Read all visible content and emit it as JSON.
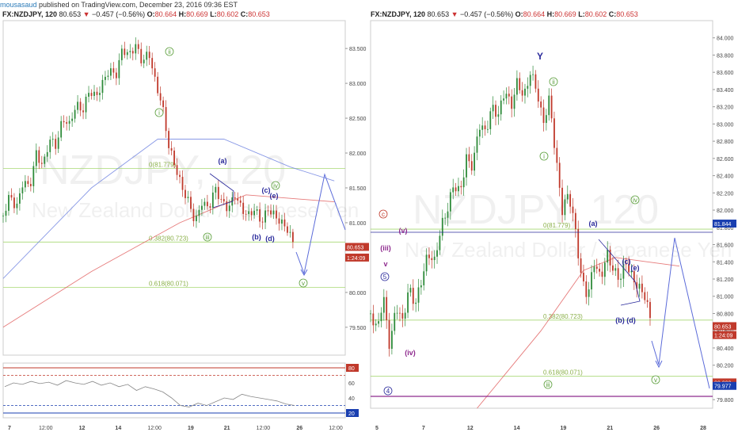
{
  "publisher": {
    "user": "mousasaud",
    "text": " published on TradingView.com, December 23, 2016 09:36 EST"
  },
  "left_header": {
    "symbol": "FX:NZDJPY, 120",
    "last": "80.653",
    "change": "−0.457 (−0.56%)",
    "o_label": "O:",
    "o": "80.664",
    "h_label": "H:",
    "h": "80.669",
    "l_label": "L:",
    "l": "80.602",
    "c_label": "C:",
    "c": "80.653"
  },
  "right_header": {
    "symbol": "FX:NZDJPY, 120",
    "last": "80.653",
    "change": "−0.457 (−0.56%)",
    "o_label": "O:",
    "o": "80.664",
    "h_label": "H:",
    "h": "80.669",
    "l_label": "L:",
    "l": "80.602",
    "c_label": "C:",
    "c": "80.653"
  },
  "colors": {
    "candle_up": "#2e8b3a",
    "candle_down": "#c0392b",
    "wave_blue": "#2b2b9c",
    "wave_green": "#5a9e3a",
    "wave_purple": "#8e2a8e",
    "wave_red": "#c0392b",
    "ma_blue": "#6b7fe0",
    "ma_red": "#e05a5a",
    "fib_green": "#a7d873",
    "price_tag": "#c0392b"
  },
  "chart_data": [
    {
      "type": "candlestick",
      "title": "FX:NZDJPY, 120",
      "watermark": "NZDJPY, 120",
      "watermark_sub": "New Zealand Dollar / Japanese Yen",
      "ylim": [
        79.1,
        83.9
      ],
      "yticks": [
        "83.500",
        "83.000",
        "82.500",
        "82.000",
        "81.500",
        "81.000",
        "80.500",
        "80.000",
        "79.500"
      ],
      "xticks": [
        "7",
        "12:00",
        "12",
        "14",
        "12:00",
        "19",
        "21",
        "12:00",
        "26",
        "12:00"
      ],
      "close_path": [
        [
          0,
          81.1
        ],
        [
          6,
          81.4
        ],
        [
          12,
          81.2
        ],
        [
          18,
          81.6
        ],
        [
          24,
          81.5
        ],
        [
          30,
          82.0
        ],
        [
          36,
          81.8
        ],
        [
          42,
          82.2
        ],
        [
          48,
          82.1
        ],
        [
          54,
          82.5
        ],
        [
          60,
          82.4
        ],
        [
          66,
          82.7
        ],
        [
          72,
          82.6
        ],
        [
          78,
          82.9
        ],
        [
          84,
          82.8
        ],
        [
          90,
          83.0
        ],
        [
          96,
          83.2
        ],
        [
          102,
          83.1
        ],
        [
          108,
          83.5
        ],
        [
          114,
          83.4
        ],
        [
          120,
          83.55
        ],
        [
          126,
          83.3
        ],
        [
          132,
          83.45
        ],
        [
          138,
          83.0
        ],
        [
          144,
          82.7
        ],
        [
          150,
          82.1
        ],
        [
          156,
          81.8
        ],
        [
          162,
          81.5
        ],
        [
          168,
          81.3
        ],
        [
          174,
          81.0
        ],
        [
          180,
          81.3
        ],
        [
          186,
          81.2
        ],
        [
          192,
          81.5
        ],
        [
          198,
          81.3
        ],
        [
          204,
          81.2
        ],
        [
          210,
          81.4
        ],
        [
          216,
          81.2
        ],
        [
          222,
          81.1
        ],
        [
          228,
          81.2
        ],
        [
          234,
          81.0
        ],
        [
          240,
          81.2
        ],
        [
          246,
          81.1
        ],
        [
          252,
          81.0
        ],
        [
          258,
          80.9
        ],
        [
          264,
          80.653
        ]
      ],
      "moving_averages": [
        {
          "name": "MA blue",
          "points": [
            [
              0,
              80.2
            ],
            [
              80,
              81.5
            ],
            [
              140,
              82.2
            ],
            [
              200,
              82.2
            ],
            [
              260,
              81.8
            ],
            [
              300,
              81.6
            ]
          ]
        },
        {
          "name": "MA red",
          "points": [
            [
              0,
              79.5
            ],
            [
              80,
              80.3
            ],
            [
              160,
              81.0
            ],
            [
              220,
              81.4
            ],
            [
              260,
              81.35
            ],
            [
              300,
              81.3
            ]
          ]
        }
      ],
      "levels": [
        {
          "label": "0(81.779)",
          "value": 81.779
        },
        {
          "label": "0.382(80.723)",
          "value": 80.723
        },
        {
          "label": "0.618(80.071)",
          "value": 80.071
        }
      ],
      "price_tags": [
        {
          "label": "80.653",
          "value": 80.653
        },
        {
          "label": "1:24:09",
          "value": 80.5
        }
      ],
      "wave_labels": [
        {
          "label": "ii",
          "color": "green",
          "circled": true
        },
        {
          "label": "i",
          "color": "green",
          "circled": true
        },
        {
          "label": "iii",
          "color": "green",
          "circled": true
        },
        {
          "label": "(a)",
          "color": "blue",
          "circled": false
        },
        {
          "label": "(b)",
          "color": "blue",
          "circled": false
        },
        {
          "label": "(c)",
          "color": "blue",
          "circled": false
        },
        {
          "label": "(d)",
          "color": "blue",
          "circled": false
        },
        {
          "label": "(e)",
          "color": "blue",
          "circled": false
        },
        {
          "label": "iv",
          "color": "green",
          "circled": true
        },
        {
          "label": "v",
          "color": "green",
          "circled": true
        }
      ],
      "indicator": {
        "ylim": [
          20,
          80
        ],
        "yticks": [
          "80",
          "60",
          "40",
          "20"
        ],
        "values": [
          55,
          60,
          58,
          62,
          59,
          61,
          57,
          63,
          60,
          58,
          62,
          57,
          60,
          55,
          58,
          50,
          55,
          52,
          48,
          40,
          30,
          28,
          33,
          30,
          35,
          40,
          38,
          45,
          42,
          40,
          38,
          36,
          32,
          30
        ]
      }
    },
    {
      "type": "candlestick",
      "title": "FX:NZDJPY, 120",
      "watermark": "NZDJPY, 120",
      "watermark_sub": "New Zealand Dollar / Japanese Yen",
      "ylim": [
        79.7,
        84.2
      ],
      "yticks": [
        "84.000",
        "83.800",
        "83.600",
        "83.400",
        "83.200",
        "83.000",
        "82.800",
        "82.600",
        "82.400",
        "82.200",
        "82.000",
        "81.800",
        "81.600",
        "81.400",
        "81.200",
        "81.000",
        "80.800",
        "80.600",
        "80.400",
        "80.200",
        "80.000",
        "79.800"
      ],
      "xticks": [
        "5",
        "7",
        "12",
        "14",
        "19",
        "21",
        "26",
        "28"
      ],
      "close_path": [
        [
          0,
          80.8
        ],
        [
          6,
          80.6
        ],
        [
          12,
          81.0
        ],
        [
          18,
          80.4
        ],
        [
          24,
          80.9
        ],
        [
          30,
          80.7
        ],
        [
          36,
          81.1
        ],
        [
          42,
          80.9
        ],
        [
          48,
          81.2
        ],
        [
          54,
          81.5
        ],
        [
          60,
          81.4
        ],
        [
          66,
          81.8
        ],
        [
          72,
          82.0
        ],
        [
          78,
          82.3
        ],
        [
          84,
          82.2
        ],
        [
          90,
          82.6
        ],
        [
          96,
          82.5
        ],
        [
          102,
          83.0
        ],
        [
          108,
          82.9
        ],
        [
          114,
          83.2
        ],
        [
          120,
          83.1
        ],
        [
          126,
          83.4
        ],
        [
          132,
          83.2
        ],
        [
          138,
          83.5
        ],
        [
          144,
          83.3
        ],
        [
          150,
          83.6
        ],
        [
          156,
          83.4
        ],
        [
          162,
          83.0
        ],
        [
          168,
          83.3
        ],
        [
          174,
          82.6
        ],
        [
          180,
          82.0
        ],
        [
          186,
          82.2
        ],
        [
          192,
          81.8
        ],
        [
          198,
          81.2
        ],
        [
          204,
          81.0
        ],
        [
          210,
          81.4
        ],
        [
          216,
          81.2
        ],
        [
          222,
          81.5
        ],
        [
          228,
          81.3
        ],
        [
          234,
          81.2
        ],
        [
          240,
          81.4
        ],
        [
          246,
          81.2
        ],
        [
          252,
          81.1
        ],
        [
          258,
          81.0
        ],
        [
          264,
          80.653
        ]
      ],
      "moving_averages": [
        {
          "name": "MA red",
          "points": [
            [
              100,
              79.7
            ],
            [
              160,
              80.6
            ],
            [
              200,
              81.3
            ],
            [
              230,
              81.45
            ],
            [
              260,
              81.4
            ],
            [
              290,
              81.35
            ]
          ]
        }
      ],
      "levels": [
        {
          "label": "0(81.779)",
          "value": 81.779
        },
        {
          "label": "0.382(80.723)",
          "value": 80.723
        },
        {
          "label": "0.618(80.071)",
          "value": 80.071
        }
      ],
      "price_tags": [
        {
          "label": "81.844",
          "value": 81.844
        },
        {
          "label": "80.653",
          "value": 80.653
        },
        {
          "label": "1:24:09",
          "value": 80.55
        },
        {
          "label": "80.000",
          "value": 80.0
        },
        {
          "label": "79.977",
          "value": 79.96
        }
      ],
      "wave_labels": [
        {
          "label": "Y",
          "color": "blue",
          "circled": false
        },
        {
          "label": "ii",
          "color": "green",
          "circled": true
        },
        {
          "label": "i",
          "color": "green",
          "circled": true
        },
        {
          "label": "iii",
          "color": "green",
          "circled": true
        },
        {
          "label": "(a)",
          "color": "blue",
          "circled": false
        },
        {
          "label": "(b)",
          "color": "blue",
          "circled": false
        },
        {
          "label": "(c)",
          "color": "blue",
          "circled": false
        },
        {
          "label": "(d)",
          "color": "blue",
          "circled": false
        },
        {
          "label": "(e)",
          "color": "blue",
          "circled": false
        },
        {
          "label": "iv",
          "color": "green",
          "circled": true
        },
        {
          "label": "v",
          "color": "green",
          "circled": true
        },
        {
          "label": "c",
          "color": "red",
          "circled": true
        },
        {
          "label": "(v)",
          "color": "purple",
          "circled": false
        },
        {
          "label": "(iii)",
          "color": "purple",
          "circled": false
        },
        {
          "label": "(iv)",
          "color": "purple",
          "circled": false
        },
        {
          "label": "v",
          "color": "purple",
          "circled": false
        },
        {
          "label": "5",
          "color": "blue",
          "circled": true
        },
        {
          "label": "4",
          "color": "blue",
          "circled": true
        }
      ]
    }
  ]
}
